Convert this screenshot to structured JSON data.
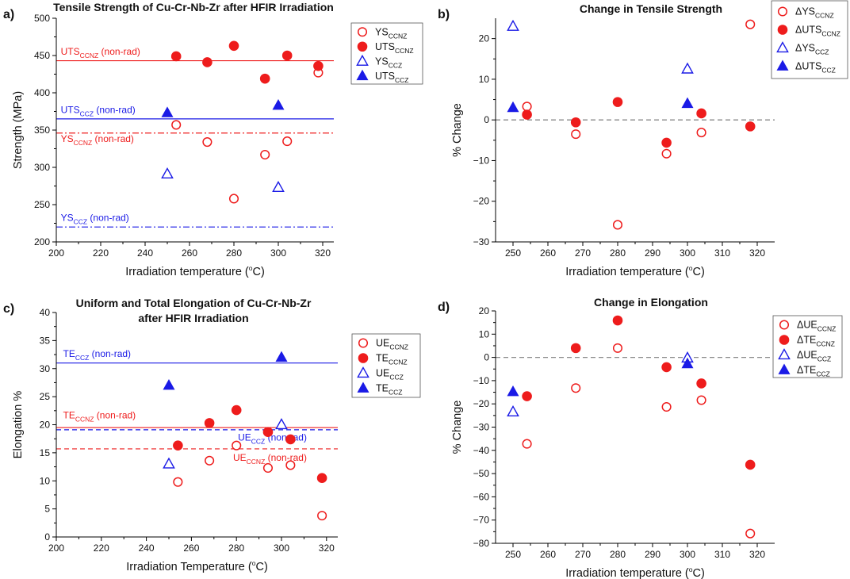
{
  "colors": {
    "red": "#ee1c1c",
    "blue": "#1a1ae6",
    "zero": "#8a8a8a",
    "axis": "#000000"
  },
  "chart_data": [
    {
      "panel_label": "a)",
      "type": "scatter",
      "title": "Tensile Strength of Cu-Cr-Nb-Zr after HFIR Irradiation",
      "xlabel": {
        "main": "Irradiation temperature (",
        "sup": "o",
        "end": "C)"
      },
      "ylabel": "Strength (MPa)",
      "xlim": [
        200,
        325
      ],
      "ylim": [
        200,
        500
      ],
      "xticks": [
        200,
        220,
        240,
        260,
        280,
        300,
        320
      ],
      "yticks": [
        200,
        250,
        300,
        350,
        400,
        450,
        500
      ],
      "series": [
        {
          "name": "YS",
          "sub": "CCNZ",
          "marker": "circle-open",
          "color": "red",
          "x": [
            254,
            268,
            280,
            294,
            304,
            318
          ],
          "y": [
            357,
            334,
            258,
            317,
            335,
            427
          ]
        },
        {
          "name": "UTS",
          "sub": "CCNZ",
          "marker": "circle-filled",
          "color": "red",
          "x": [
            254,
            268,
            280,
            294,
            304,
            318
          ],
          "y": [
            449,
            441,
            463,
            419,
            450,
            436
          ]
        },
        {
          "name": "YS",
          "sub": "CCZ",
          "marker": "triangle-open",
          "color": "blue",
          "x": [
            250,
            300
          ],
          "y": [
            291,
            273
          ]
        },
        {
          "name": "UTS",
          "sub": "CCZ",
          "marker": "triangle-filled",
          "color": "blue",
          "x": [
            250,
            300
          ],
          "y": [
            373,
            383
          ]
        }
      ],
      "reference_lines": [
        {
          "value": 443,
          "style": "solid",
          "color": "red",
          "label": "UTS",
          "sub": "CCNZ",
          "suffix": " (non-rad)",
          "label_x": 202,
          "label_y": 451
        },
        {
          "value": 365,
          "style": "solid",
          "color": "blue",
          "label": "UTS",
          "sub": "CCZ",
          "suffix": " (non-rad)",
          "label_x": 202,
          "label_y": 373
        },
        {
          "value": 346,
          "style": "dashdot",
          "color": "red",
          "label": "YS",
          "sub": "CCNZ",
          "suffix": " (non-rad)",
          "label_x": 202,
          "label_y": 334
        },
        {
          "value": 220,
          "style": "dashdot",
          "color": "blue",
          "label": "YS",
          "sub": "CCZ",
          "suffix": " (non-rad)",
          "label_x": 202,
          "label_y": 228
        }
      ],
      "zero_line": false,
      "legend_position": "top-right"
    },
    {
      "panel_label": "b)",
      "type": "scatter",
      "title": "Change in Tensile Strength",
      "xlabel": {
        "main": "Irradiation temperature (",
        "sup": "o",
        "end": "C)"
      },
      "ylabel": "% Change",
      "xlim": [
        245,
        325
      ],
      "ylim": [
        -30,
        25
      ],
      "xticks": [
        250,
        260,
        270,
        280,
        290,
        300,
        310,
        320
      ],
      "yticks": [
        -30,
        -20,
        -10,
        0,
        10,
        20
      ],
      "series": [
        {
          "name": "ΔYS",
          "sub": "CCNZ",
          "marker": "circle-open",
          "color": "red",
          "x": [
            254,
            268,
            280,
            294,
            304,
            318
          ],
          "y": [
            3.3,
            -3.5,
            -25.8,
            -8.3,
            -3.1,
            23.5
          ]
        },
        {
          "name": "ΔUTS",
          "sub": "CCNZ",
          "marker": "circle-filled",
          "color": "red",
          "x": [
            254,
            268,
            280,
            294,
            304,
            318
          ],
          "y": [
            1.3,
            -0.6,
            4.4,
            -5.6,
            1.6,
            -1.6
          ]
        },
        {
          "name": "ΔYS",
          "sub": "CCZ",
          "marker": "triangle-open",
          "color": "blue",
          "x": [
            250,
            300
          ],
          "y": [
            23.0,
            12.5
          ]
        },
        {
          "name": "ΔUTS",
          "sub": "CCZ",
          "marker": "triangle-filled",
          "color": "blue",
          "x": [
            250,
            300
          ],
          "y": [
            3.0,
            4.0
          ]
        }
      ],
      "reference_lines": [],
      "zero_line": true,
      "legend_position": "top-right"
    },
    {
      "panel_label": "c)",
      "type": "scatter",
      "title": "Uniform and Total Elongation of Cu-Cr-Nb-Zr",
      "title2": "after HFIR Irradiation",
      "xlabel": {
        "main": "Irradiation Temperature (",
        "sup": "o",
        "end": "C)"
      },
      "ylabel": "Elongation %",
      "xlim": [
        200,
        325
      ],
      "ylim": [
        0,
        40
      ],
      "xticks": [
        200,
        220,
        240,
        260,
        280,
        300,
        320
      ],
      "yticks": [
        0,
        5,
        10,
        15,
        20,
        25,
        30,
        35,
        40
      ],
      "series": [
        {
          "name": "UE",
          "sub": "CCNZ",
          "marker": "circle-open",
          "color": "red",
          "x": [
            254,
            268,
            280,
            294,
            304,
            318
          ],
          "y": [
            9.8,
            13.6,
            16.3,
            12.3,
            12.8,
            3.8
          ]
        },
        {
          "name": "TE",
          "sub": "CCNZ",
          "marker": "circle-filled",
          "color": "red",
          "x": [
            254,
            268,
            280,
            294,
            304,
            318
          ],
          "y": [
            16.3,
            20.3,
            22.6,
            18.7,
            17.4,
            10.5
          ]
        },
        {
          "name": "UE",
          "sub": "CCZ",
          "marker": "triangle-open",
          "color": "blue",
          "x": [
            250,
            300
          ],
          "y": [
            13.0,
            20.0
          ]
        },
        {
          "name": "TE",
          "sub": "CCZ",
          "marker": "triangle-filled",
          "color": "blue",
          "x": [
            250,
            300
          ],
          "y": [
            27.0,
            32.0
          ]
        }
      ],
      "reference_lines": [
        {
          "value": 31.0,
          "style": "solid",
          "color": "blue",
          "label": "TE",
          "sub": "CCZ",
          "suffix": " (non-rad)",
          "label_x": 203,
          "label_y": 32.1
        },
        {
          "value": 19.5,
          "style": "solid",
          "color": "red",
          "label": "TE",
          "sub": "CCNZ",
          "suffix": " (non-rad)",
          "label_x": 203,
          "label_y": 21.1
        },
        {
          "value": 19.1,
          "style": "dashed",
          "color": "blue",
          "label": "UE",
          "sub": "CCZ",
          "suffix": " (non-rad)",
          "label_x": 269,
          "label_y": 17.2,
          "anchor": "end"
        },
        {
          "value": 15.7,
          "style": "dashed",
          "color": "red",
          "label": "UE",
          "sub": "CCNZ",
          "suffix": " (non-rad)",
          "label_x": 269,
          "label_y": 13.6,
          "anchor": "end"
        }
      ],
      "zero_line": false,
      "legend_position": "top-right"
    },
    {
      "panel_label": "d)",
      "type": "scatter",
      "title": "Change in Elongation",
      "xlabel": {
        "main": "Irradiation temperature (",
        "sup": "o",
        "end": "C)"
      },
      "ylabel": "% Change",
      "xlim": [
        245,
        325
      ],
      "ylim": [
        -80,
        20
      ],
      "xticks": [
        250,
        260,
        270,
        280,
        290,
        300,
        310,
        320
      ],
      "yticks": [
        -80,
        -70,
        -60,
        -50,
        -40,
        -30,
        -20,
        -10,
        0,
        10,
        20
      ],
      "series": [
        {
          "name": "ΔUE",
          "sub": "CCNZ",
          "marker": "circle-open",
          "color": "red",
          "x": [
            254,
            268,
            280,
            294,
            304,
            318
          ],
          "y": [
            -37.2,
            -13.2,
            4.0,
            -21.3,
            -18.4,
            -75.8
          ]
        },
        {
          "name": "ΔTE",
          "sub": "CCNZ",
          "marker": "circle-filled",
          "color": "red",
          "x": [
            254,
            268,
            280,
            294,
            304,
            318
          ],
          "y": [
            -16.7,
            4.0,
            15.9,
            -4.2,
            -11.2,
            -46.2
          ]
        },
        {
          "name": "ΔUE",
          "sub": "CCZ",
          "marker": "triangle-open",
          "color": "blue",
          "x": [
            250,
            300
          ],
          "y": [
            -23.5,
            -0.3
          ]
        },
        {
          "name": "ΔTE",
          "sub": "CCZ",
          "marker": "triangle-filled",
          "color": "blue",
          "x": [
            250,
            300
          ],
          "y": [
            -14.8,
            -2.8
          ]
        }
      ],
      "reference_lines": [],
      "zero_line": true,
      "legend_position": "top-right"
    }
  ]
}
